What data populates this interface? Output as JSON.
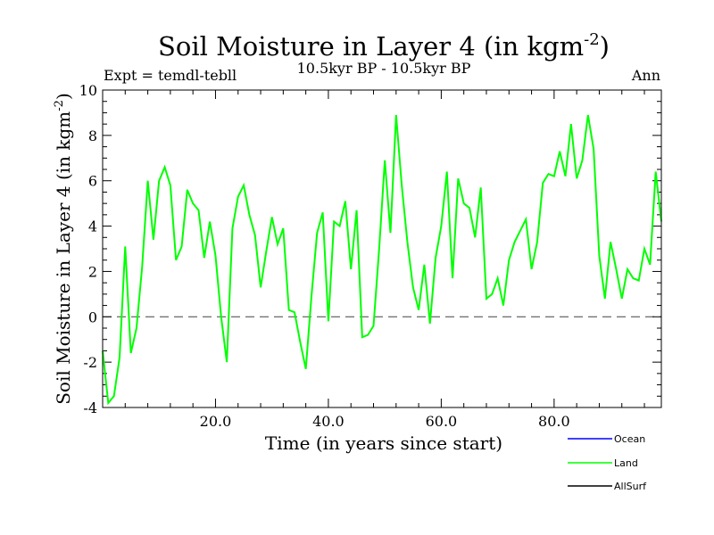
{
  "chart_data": {
    "type": "line",
    "title": "Soil Moisture in Layer 4 (in kgm",
    "title_sup": "-2",
    "title_close": ")",
    "expt_label": "Expt = temdl-tebll",
    "subtitle": "10.5kyr BP - 10.5kyr BP",
    "season": "Ann",
    "xlabel": "Time (in years since start)",
    "ylabel": "Soil Moisture in Layer 4 (in kgm",
    "ylabel_sup": "-2",
    "ylabel_close": ")",
    "xlim": [
      0,
      99
    ],
    "ylim": [
      -4,
      10
    ],
    "x_ticks": [
      20,
      40,
      60,
      80
    ],
    "x_tick_labels": [
      "20.0",
      "40.0",
      "60.0",
      "80.0"
    ],
    "y_ticks": [
      -4,
      -2,
      0,
      2,
      4,
      6,
      8,
      10
    ],
    "y_tick_labels": [
      "-4",
      "-2",
      "0",
      "2",
      "4",
      "6",
      "8",
      "10"
    ],
    "reference_line": 0,
    "legend": [
      {
        "name": "Ocean",
        "color": "#0000ff"
      },
      {
        "name": "Land",
        "color": "#00ff00"
      },
      {
        "name": "AllSurf",
        "color": "#000000"
      }
    ],
    "series": [
      {
        "name": "Land",
        "color": "#00ff00",
        "x": [
          0,
          1,
          2,
          3,
          4,
          5,
          6,
          7,
          8,
          9,
          10,
          11,
          12,
          13,
          14,
          15,
          16,
          17,
          18,
          19,
          20,
          21,
          22,
          23,
          24,
          25,
          26,
          27,
          28,
          29,
          30,
          31,
          32,
          33,
          34,
          35,
          36,
          37,
          38,
          39,
          40,
          41,
          42,
          43,
          44,
          45,
          46,
          47,
          48,
          49,
          50,
          51,
          52,
          53,
          54,
          55,
          56,
          57,
          58,
          59,
          60,
          61,
          62,
          63,
          64,
          65,
          66,
          67,
          68,
          69,
          70,
          71,
          72,
          73,
          74,
          75,
          76,
          77,
          78,
          79,
          80,
          81,
          82,
          83,
          84,
          85,
          86,
          87,
          88,
          89,
          90,
          91,
          92,
          93,
          94,
          95,
          96,
          97,
          98,
          99
        ],
        "values": [
          -1.5,
          -3.8,
          -3.5,
          -1.8,
          3.1,
          -1.6,
          -0.5,
          2.2,
          6.0,
          3.4,
          6.0,
          6.6,
          5.8,
          2.5,
          3.1,
          5.6,
          5.0,
          4.7,
          2.6,
          4.2,
          2.7,
          0.0,
          -2.0,
          3.9,
          5.3,
          5.8,
          4.5,
          3.6,
          1.3,
          2.9,
          4.4,
          3.2,
          3.9,
          0.3,
          0.2,
          -1.1,
          -2.3,
          0.9,
          3.7,
          4.6,
          -0.2,
          4.2,
          4.0,
          5.1,
          2.1,
          4.7,
          -0.9,
          -0.8,
          -0.4,
          3.0,
          6.9,
          3.7,
          8.9,
          5.8,
          3.3,
          1.3,
          0.3,
          2.3,
          -0.3,
          2.6,
          4.0,
          6.4,
          1.7,
          6.1,
          5.0,
          4.8,
          3.5,
          5.7,
          0.8,
          1.0,
          1.7,
          0.5,
          2.5,
          3.3,
          3.8,
          4.3,
          2.1,
          3.3,
          5.9,
          6.3,
          6.2,
          7.3,
          6.2,
          8.5,
          6.1,
          6.9,
          8.9,
          7.4,
          2.7,
          0.8,
          3.3,
          2.1,
          0.8,
          2.1,
          1.7,
          1.6,
          3.0,
          2.3,
          6.4,
          4.2
        ]
      }
    ]
  }
}
